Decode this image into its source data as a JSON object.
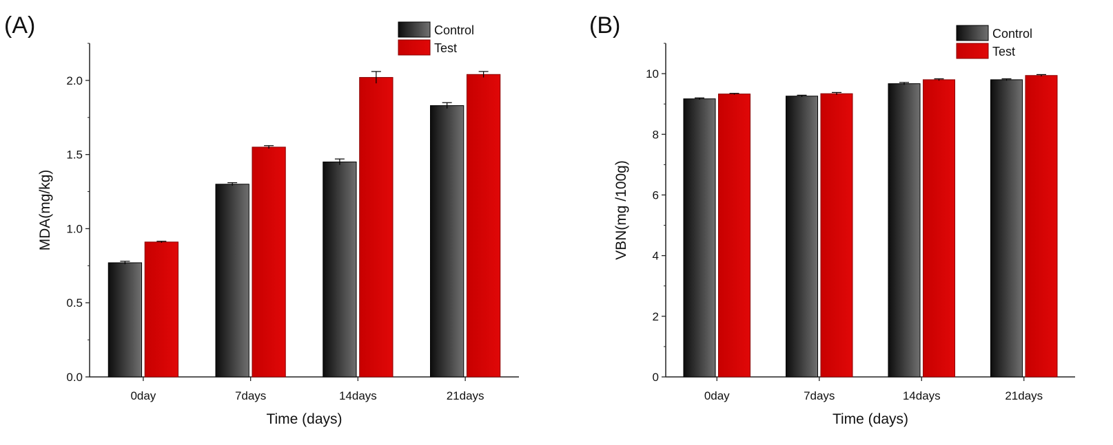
{
  "figure": {
    "panels": [
      "(A)",
      "(B)"
    ]
  },
  "colors": {
    "control_dark": "#111111",
    "control_light": "#6e6e6e",
    "test": "#cc0000",
    "test_light": "#e01010",
    "axis": "#222222"
  },
  "chart_data": [
    {
      "type": "bar",
      "panel_label": "(A)",
      "categories": [
        "0day",
        "7days",
        "14days",
        "21days"
      ],
      "series": [
        {
          "name": "Control",
          "values": [
            0.77,
            1.3,
            1.45,
            1.83
          ],
          "errors": [
            0.01,
            0.01,
            0.02,
            0.02
          ]
        },
        {
          "name": "Test",
          "values": [
            0.91,
            1.55,
            2.02,
            2.04
          ],
          "errors": [
            0.005,
            0.01,
            0.04,
            0.02
          ]
        }
      ],
      "xlabel": "Time (days)",
      "ylabel": "MDA(mg/kg)",
      "ylim": [
        0,
        2.25
      ],
      "yticks": [
        0.0,
        0.5,
        1.0,
        1.5,
        2.0
      ],
      "ytick_labels": [
        "0.0",
        "0.5",
        "1.0",
        "1.5",
        "2.0"
      ],
      "legend_position": "top-right"
    },
    {
      "type": "bar",
      "panel_label": "(B)",
      "categories": [
        "0day",
        "7days",
        "14days",
        "21days"
      ],
      "series": [
        {
          "name": "Control",
          "values": [
            9.17,
            9.26,
            9.67,
            9.8
          ],
          "errors": [
            0.03,
            0.03,
            0.04,
            0.03
          ]
        },
        {
          "name": "Test",
          "values": [
            9.33,
            9.34,
            9.8,
            9.94
          ],
          "errors": [
            0.02,
            0.04,
            0.03,
            0.03
          ]
        }
      ],
      "xlabel": "Time (days)",
      "ylabel": "VBN(mg /100g)",
      "ylim": [
        0,
        11
      ],
      "yticks": [
        0,
        2,
        4,
        6,
        8,
        10
      ],
      "ytick_labels": [
        "0",
        "2",
        "4",
        "6",
        "8",
        "10"
      ],
      "legend_position": "top-right"
    }
  ]
}
